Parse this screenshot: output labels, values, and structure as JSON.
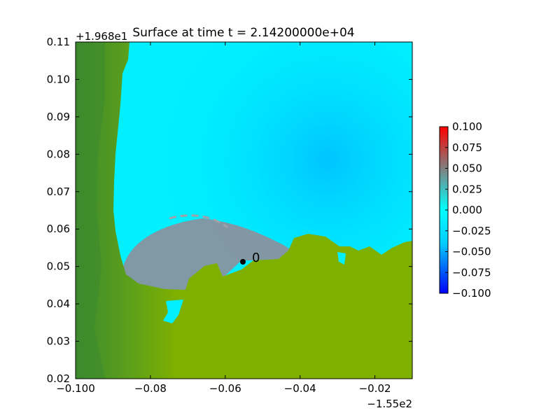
{
  "chart_data": {
    "type": "heatmap",
    "title": "Surface at time t = 2.14200000e+04",
    "xlabel": "",
    "ylabel": "",
    "x_offset_label": "−1.55e2",
    "y_offset_label": "+1.968e1",
    "xlim": [
      -0.1,
      -0.01
    ],
    "ylim": [
      0.02,
      0.11
    ],
    "x_ticks": [
      -0.1,
      -0.08,
      -0.06,
      -0.04,
      -0.02
    ],
    "x_tick_labels": [
      "−0.100",
      "−0.08",
      "−0.06",
      "−0.04",
      "−0.02"
    ],
    "y_ticks": [
      0.02,
      0.03,
      0.04,
      0.05,
      0.06,
      0.07,
      0.08,
      0.09,
      0.1,
      0.11
    ],
    "y_tick_labels": [
      "0.02",
      "0.03",
      "0.04",
      "0.05",
      "0.06",
      "0.07",
      "0.08",
      "0.09",
      "0.10",
      "0.11"
    ],
    "colorbar": {
      "range": [
        -0.1,
        0.1
      ],
      "ticks": [
        0.1,
        0.075,
        0.05,
        0.025,
        0.0,
        -0.025,
        -0.05,
        -0.075,
        -0.1
      ],
      "tick_labels": [
        "0.100",
        "0.075",
        "0.050",
        "0.025",
        "0.000",
        "−0.025",
        "−0.050",
        "−0.075",
        "−0.100"
      ],
      "colors": [
        "#0000ff",
        "#00ccff",
        "#00ffff",
        "#808080",
        "#ff0000"
      ]
    },
    "gauge": {
      "label": "0",
      "x": -0.0555,
      "y": 0.051
    },
    "colors": {
      "land": "#7fb000",
      "land_dark": "#3d8a2e",
      "water": "#00f0ff",
      "water_deep": "#00c4ff",
      "wave": "#8f8f9a"
    }
  }
}
